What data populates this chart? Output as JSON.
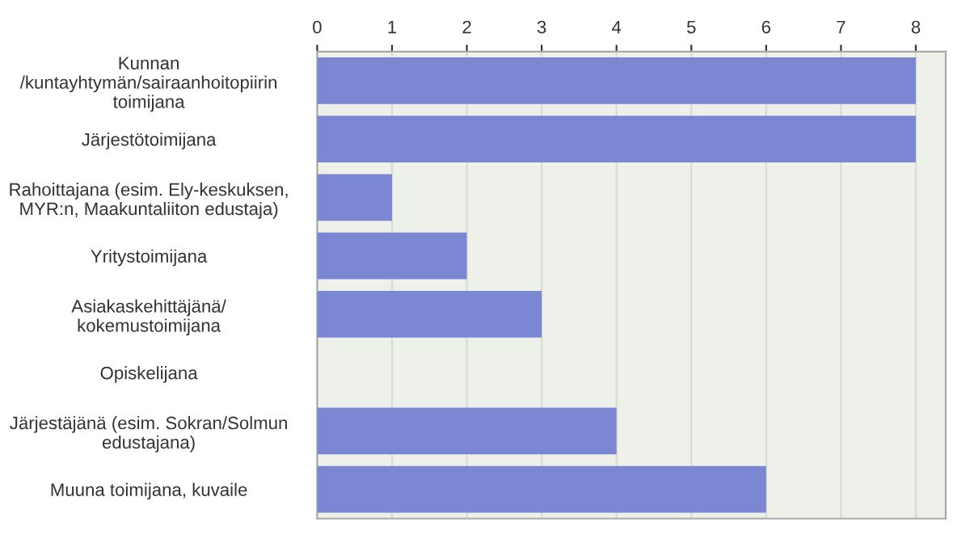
{
  "chart_data": {
    "type": "bar",
    "orientation": "horizontal",
    "categories": [
      "Kunnan\n/kuntayhtymän/sairaanhoitopiirin\ntoimijana",
      "Järjestötoimijana",
      "Rahoittajana (esim. Ely-keskuksen,\nMYR:n, Maakuntaliiton edustaja)",
      "Yritystoimijana",
      "Asiakaskehittäjänä/\nkokemustoimijana",
      "Opiskelijana",
      "Järjestäjänä (esim. Sokran/Solmun\nedustajana)",
      "Muuna toimijana, kuvaile"
    ],
    "values": [
      8,
      8,
      1,
      2,
      3,
      0,
      4,
      6
    ],
    "color": "#7b87d2",
    "xlim": [
      0,
      8.4
    ],
    "xticks": [
      0,
      1,
      2,
      3,
      4,
      5,
      6,
      7,
      8
    ],
    "grid": "x",
    "legend": false
  }
}
